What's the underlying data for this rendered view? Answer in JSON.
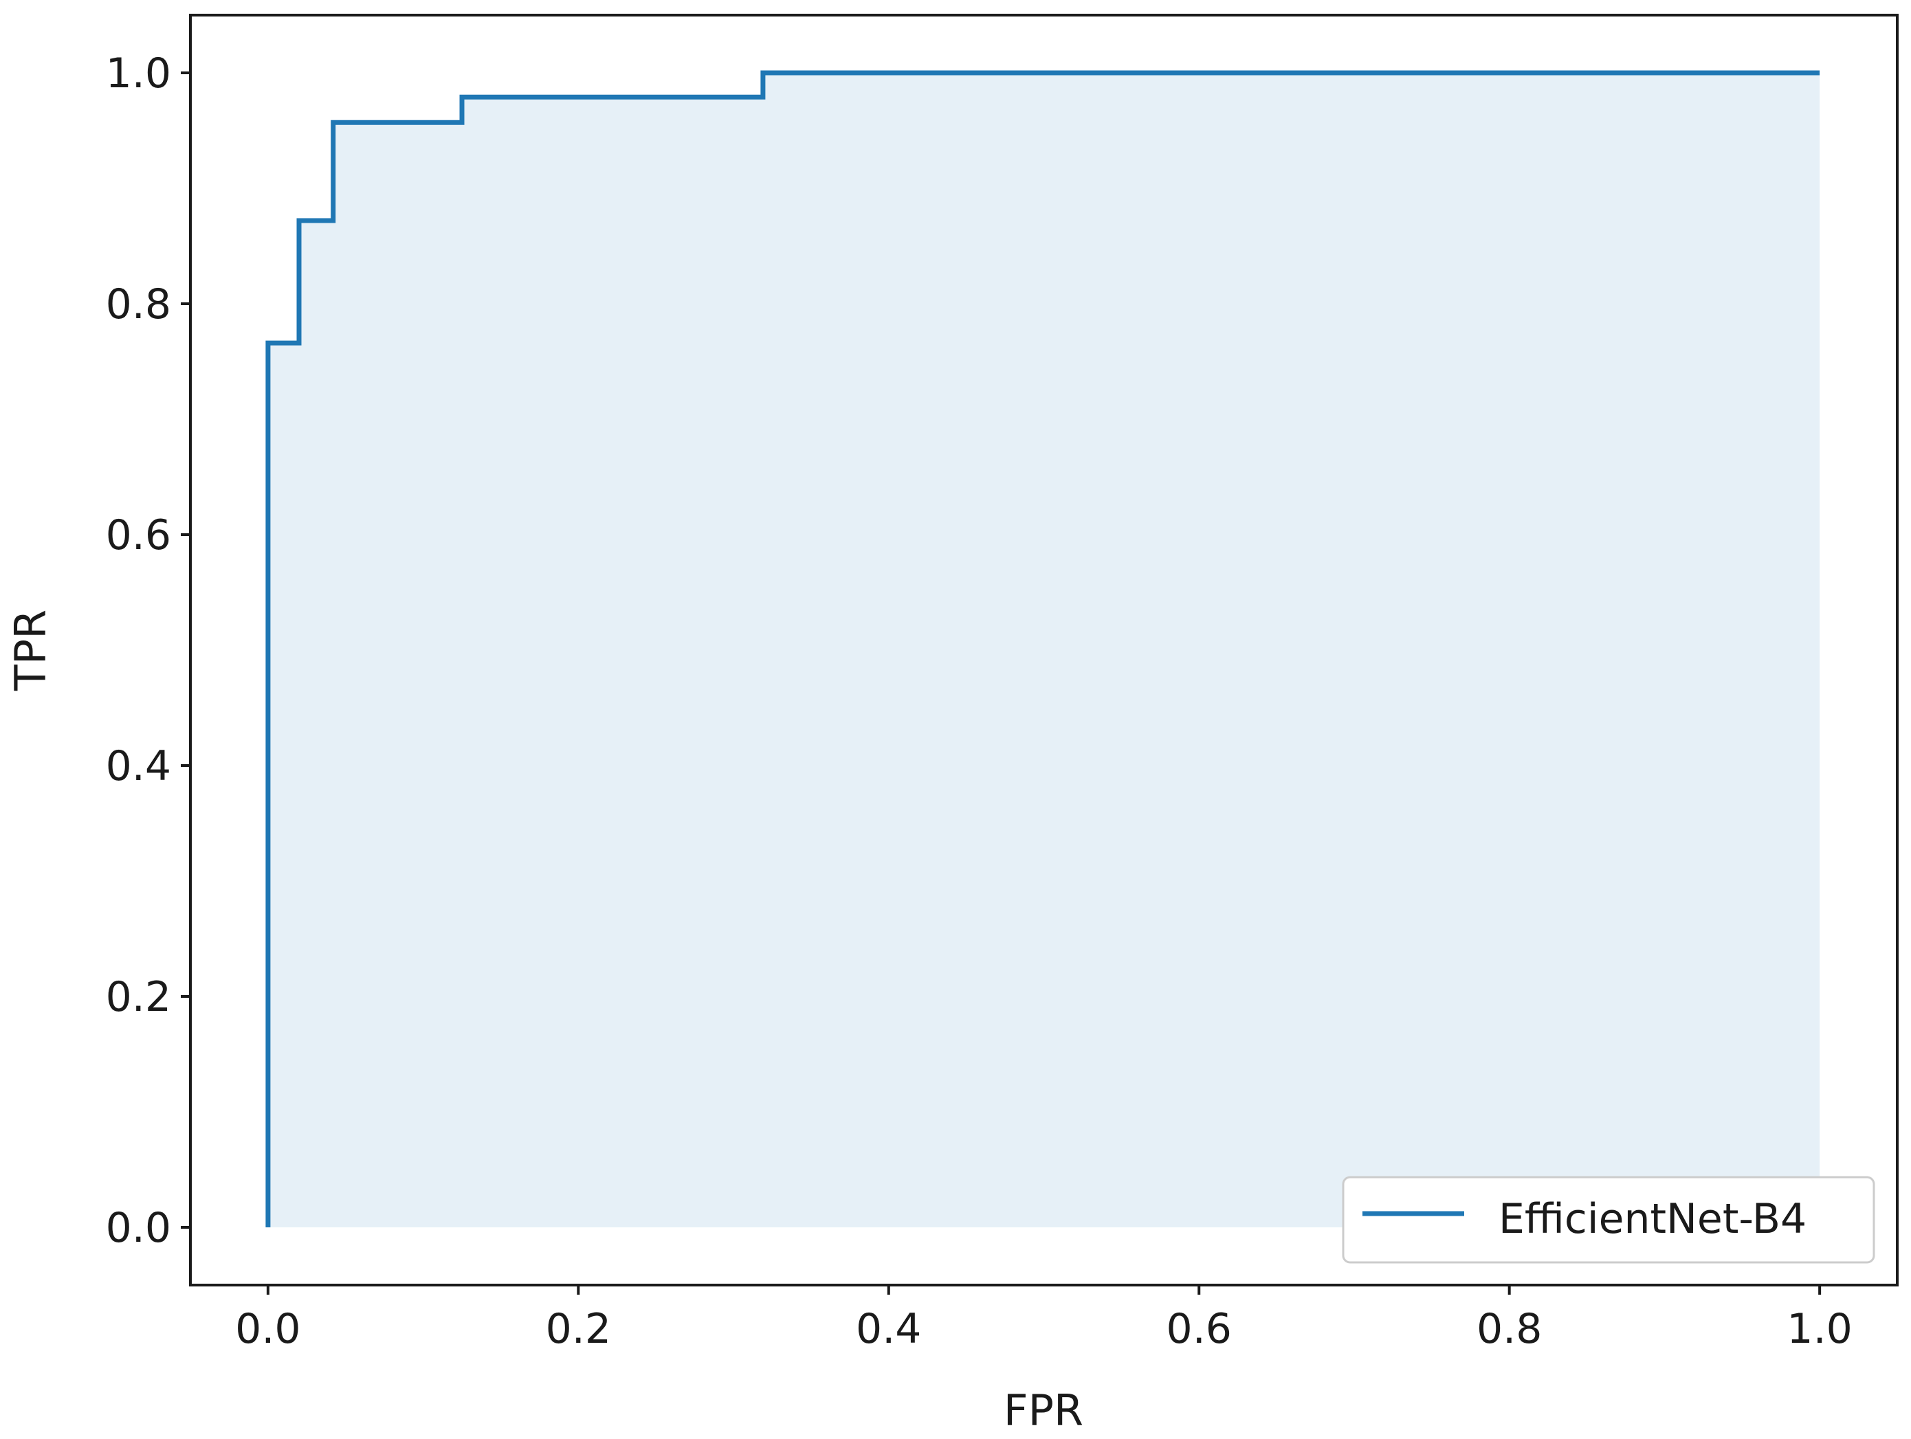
{
  "chart_data": {
    "type": "line",
    "title": "",
    "xlabel": "FPR",
    "ylabel": "TPR",
    "xlim": [
      -0.05,
      1.05
    ],
    "ylim": [
      -0.05,
      1.05
    ],
    "grid": false,
    "legend_position": "lower-right",
    "x_ticks": [
      0.0,
      0.2,
      0.4,
      0.6,
      0.8,
      1.0
    ],
    "x_tick_labels": [
      "0.0",
      "0.2",
      "0.4",
      "0.6",
      "0.8",
      "1.0"
    ],
    "y_ticks": [
      0.0,
      0.2,
      0.4,
      0.6,
      0.8,
      1.0
    ],
    "y_tick_labels": [
      "0.0",
      "0.2",
      "0.4",
      "0.6",
      "0.8",
      "1.0"
    ],
    "series": [
      {
        "name": "EfficientNet-B4",
        "color": "#1f77b4",
        "fill_color": "#1f77b4",
        "fill_opacity": 0.11,
        "step": true,
        "x": [
          0.0,
          0.0,
          0.02,
          0.02,
          0.042,
          0.042,
          0.125,
          0.125,
          0.319,
          0.319,
          1.0
        ],
        "y": [
          0.0,
          0.766,
          0.766,
          0.872,
          0.872,
          0.957,
          0.957,
          0.979,
          0.979,
          1.0,
          1.0
        ]
      }
    ]
  }
}
